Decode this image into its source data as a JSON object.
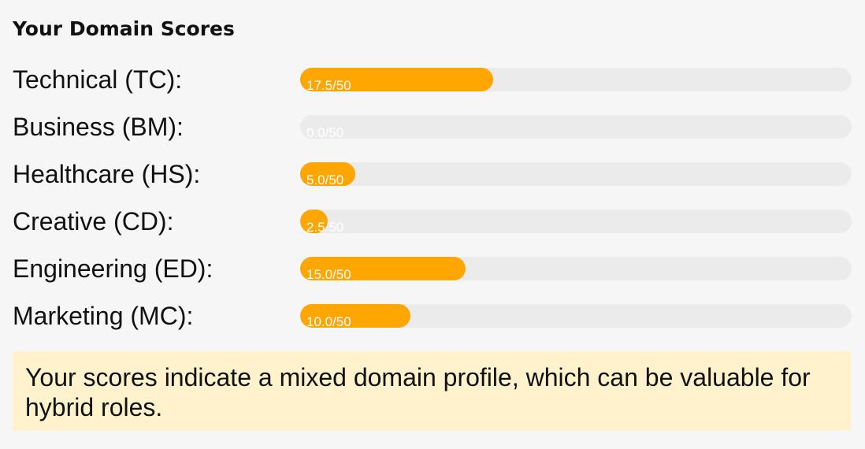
{
  "panel": {
    "title": "Your Domain Scores",
    "bar_color": "#ffa600",
    "track_color": "#ebebeb",
    "note_background": "#fff2cc"
  },
  "scores": [
    {
      "label": "Technical (TC):",
      "value_text": "17.5/50",
      "score": 17.5,
      "max": 50
    },
    {
      "label": "Business (BM):",
      "value_text": "0.0/50",
      "score": 0.0,
      "max": 50
    },
    {
      "label": "Healthcare (HS):",
      "value_text": "5.0/50",
      "score": 5.0,
      "max": 50
    },
    {
      "label": "Creative (CD):",
      "value_text": "2.5/50",
      "score": 2.5,
      "max": 50
    },
    {
      "label": "Engineering (ED):",
      "value_text": "15.0/50",
      "score": 15.0,
      "max": 50
    },
    {
      "label": "Marketing (MC):",
      "value_text": "10.0/50",
      "score": 10.0,
      "max": 50
    }
  ],
  "note": {
    "text": "Your scores indicate a mixed domain profile, which can be valuable for hybrid roles."
  }
}
